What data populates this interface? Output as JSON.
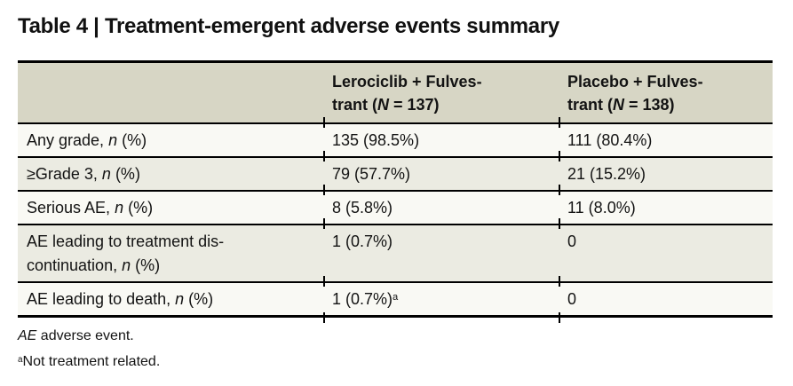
{
  "title": "Table 4 | Treatment-emergent adverse events summary",
  "colors": {
    "header_bg": "#d7d6c5",
    "row_shaded_bg": "#ebebe2",
    "row_light_bg": "#f9f9f4",
    "rule": "#000000",
    "text": "#131313",
    "page_bg": "#ffffff"
  },
  "table": {
    "header": {
      "col2": [
        {
          "t": "Lerociclib + Fulves-"
        },
        {
          "br": true
        },
        {
          "t": "trant ("
        },
        {
          "t": "N",
          "i": true
        },
        {
          "t": " = 137)"
        }
      ],
      "col3": [
        {
          "t": "Placebo + Fulves-"
        },
        {
          "br": true
        },
        {
          "t": "trant ("
        },
        {
          "t": "N",
          "i": true
        },
        {
          "t": " = 138)"
        }
      ]
    },
    "rows": [
      {
        "label": [
          {
            "t": "Any grade, "
          },
          {
            "t": "n",
            "i": true
          },
          {
            "t": " (%)"
          }
        ],
        "col2": [
          {
            "t": "135 (98.5%)"
          }
        ],
        "col3": [
          {
            "t": "111 (80.4%)"
          }
        ]
      },
      {
        "label": [
          {
            "t": "≥Grade 3, "
          },
          {
            "t": "n",
            "i": true
          },
          {
            "t": " (%)"
          }
        ],
        "col2": [
          {
            "t": "79 (57.7%)"
          }
        ],
        "col3": [
          {
            "t": "21 (15.2%)"
          }
        ]
      },
      {
        "label": [
          {
            "t": "Serious AE, "
          },
          {
            "t": "n",
            "i": true
          },
          {
            "t": " (%)"
          }
        ],
        "col2": [
          {
            "t": "8 (5.8%)"
          }
        ],
        "col3": [
          {
            "t": "11 (8.0%)"
          }
        ]
      },
      {
        "label": [
          {
            "t": "AE leading to treatment dis-"
          },
          {
            "br": true
          },
          {
            "t": "continuation, "
          },
          {
            "t": "n",
            "i": true
          },
          {
            "t": " (%)"
          }
        ],
        "col2": [
          {
            "t": "1 (0.7%)"
          }
        ],
        "col3": [
          {
            "t": "0"
          }
        ]
      },
      {
        "label": [
          {
            "t": "AE leading to death, "
          },
          {
            "t": "n",
            "i": true
          },
          {
            "t": " (%)"
          }
        ],
        "col2": [
          {
            "t": "1 (0.7%)"
          },
          {
            "t": "a",
            "sup": true
          }
        ],
        "col3": [
          {
            "t": "0"
          }
        ]
      }
    ]
  },
  "footnotes": {
    "abbreviation": [
      {
        "t": "AE",
        "i": true
      },
      {
        "t": " adverse event."
      }
    ],
    "a": [
      {
        "t": "a",
        "sup": true
      },
      {
        "t": "Not treatment related."
      }
    ]
  }
}
